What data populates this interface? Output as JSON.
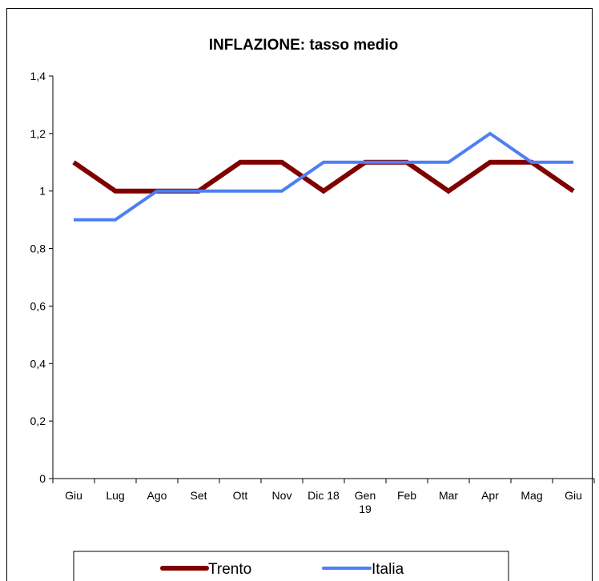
{
  "chart_data": {
    "type": "line",
    "title": "INFLAZIONE: tasso medio",
    "xlabel": "",
    "ylabel": "",
    "categories": [
      [
        "Giu"
      ],
      [
        "Lug"
      ],
      [
        "Ago"
      ],
      [
        "Set"
      ],
      [
        "Ott"
      ],
      [
        "Nov"
      ],
      [
        "Dic 18"
      ],
      [
        "Gen",
        "19"
      ],
      [
        "Feb"
      ],
      [
        "Mar"
      ],
      [
        "Apr"
      ],
      [
        "Mag"
      ],
      [
        "Giu"
      ]
    ],
    "y_ticks": [
      "0",
      "0,2",
      "0,4",
      "0,6",
      "0,8",
      "1",
      "1,2",
      "1,4"
    ],
    "ylim": [
      0,
      1.4
    ],
    "grid": false,
    "legend_position": "bottom",
    "series": [
      {
        "name": "Trento",
        "color": "#800000",
        "values": [
          1.1,
          1.0,
          1.0,
          1.0,
          1.1,
          1.1,
          1.0,
          1.1,
          1.1,
          1.0,
          1.1,
          1.1,
          1.0
        ]
      },
      {
        "name": "Italia",
        "color": "#4d7ff5",
        "values": [
          0.9,
          0.9,
          1.0,
          1.0,
          1.0,
          1.0,
          1.1,
          1.1,
          1.1,
          1.1,
          1.2,
          1.1,
          1.1
        ]
      }
    ]
  }
}
